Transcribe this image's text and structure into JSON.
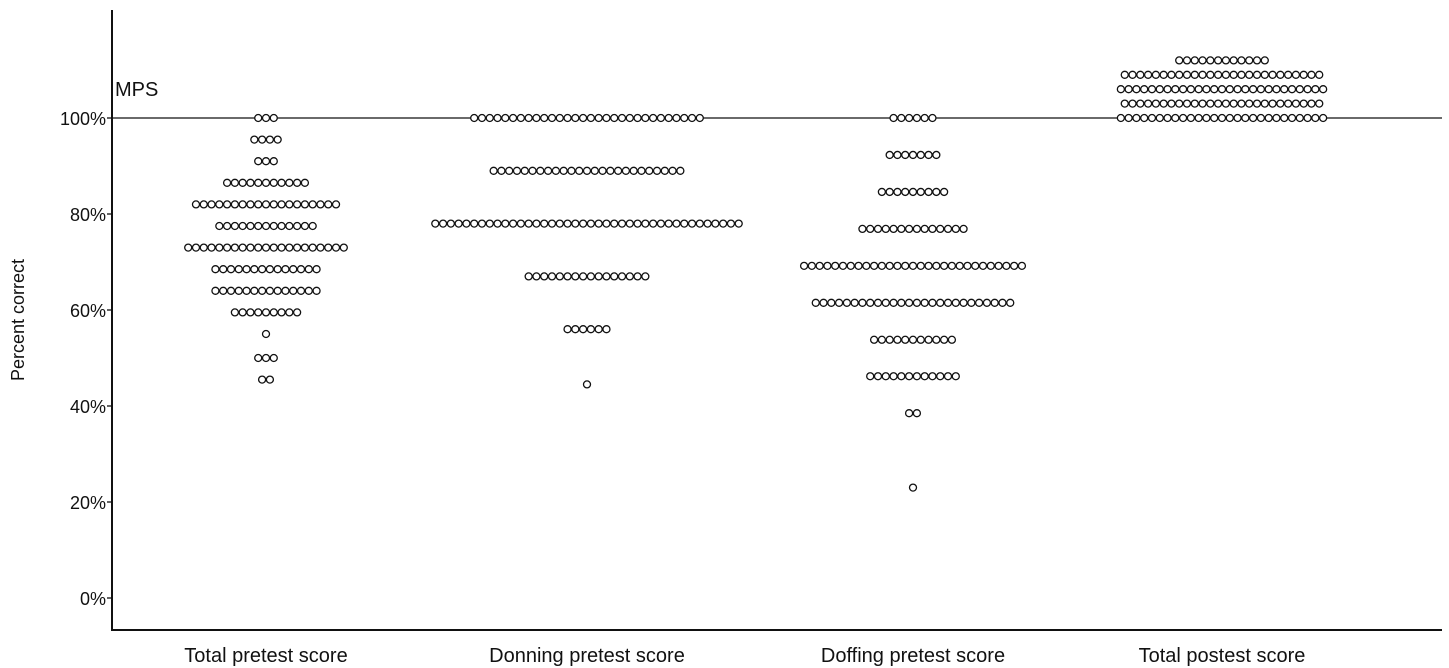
{
  "chart_data": {
    "type": "scatter",
    "subtype": "dot-plot",
    "title": "",
    "xlabel": "",
    "ylabel": "Percent correct",
    "ylim": [
      0,
      100
    ],
    "ytick_values": [
      0,
      20,
      40,
      60,
      80,
      100
    ],
    "ytick_labels": [
      "0%",
      "20%",
      "40%",
      "60%",
      "80%",
      "100%"
    ],
    "grid": false,
    "legend": "none",
    "reference_line": {
      "label": "MPS",
      "value": 100
    },
    "categories": [
      "Total pretest score",
      "Donning pretest score",
      "Doffing pretest score",
      "Total postest score"
    ],
    "series": [
      {
        "bins": [
          {
            "value": 100,
            "count": 3
          },
          {
            "value": 95.5,
            "count": 4
          },
          {
            "value": 91,
            "count": 3
          },
          {
            "value": 86.5,
            "count": 11
          },
          {
            "value": 82,
            "count": 19
          },
          {
            "value": 77.5,
            "count": 13
          },
          {
            "value": 73,
            "count": 21
          },
          {
            "value": 68.5,
            "count": 14
          },
          {
            "value": 64,
            "count": 14
          },
          {
            "value": 59.5,
            "count": 9
          },
          {
            "value": 55,
            "count": 1
          },
          {
            "value": 50,
            "count": 3
          },
          {
            "value": 45.5,
            "count": 2
          }
        ]
      },
      {
        "bins": [
          {
            "value": 100,
            "count": 30
          },
          {
            "value": 89,
            "count": 25
          },
          {
            "value": 78,
            "count": 40
          },
          {
            "value": 67,
            "count": 16
          },
          {
            "value": 56,
            "count": 6
          },
          {
            "value": 44.5,
            "count": 1
          }
        ]
      },
      {
        "bins": [
          {
            "value": 100,
            "count": 6
          },
          {
            "value": 92.3,
            "count": 7
          },
          {
            "value": 84.6,
            "count": 9
          },
          {
            "value": 76.9,
            "count": 14
          },
          {
            "value": 69.2,
            "count": 29
          },
          {
            "value": 61.5,
            "count": 26
          },
          {
            "value": 53.8,
            "count": 11
          },
          {
            "value": 46.2,
            "count": 12
          },
          {
            "value": 38.5,
            "count": 2
          },
          {
            "value": 23,
            "count": 1
          }
        ]
      },
      {
        "bins": [
          {
            "value": 112,
            "count": 12
          },
          {
            "value": 109,
            "count": 26
          },
          {
            "value": 106,
            "count": 27
          },
          {
            "value": 103,
            "count": 26
          },
          {
            "value": 100,
            "count": 27
          }
        ]
      }
    ]
  }
}
